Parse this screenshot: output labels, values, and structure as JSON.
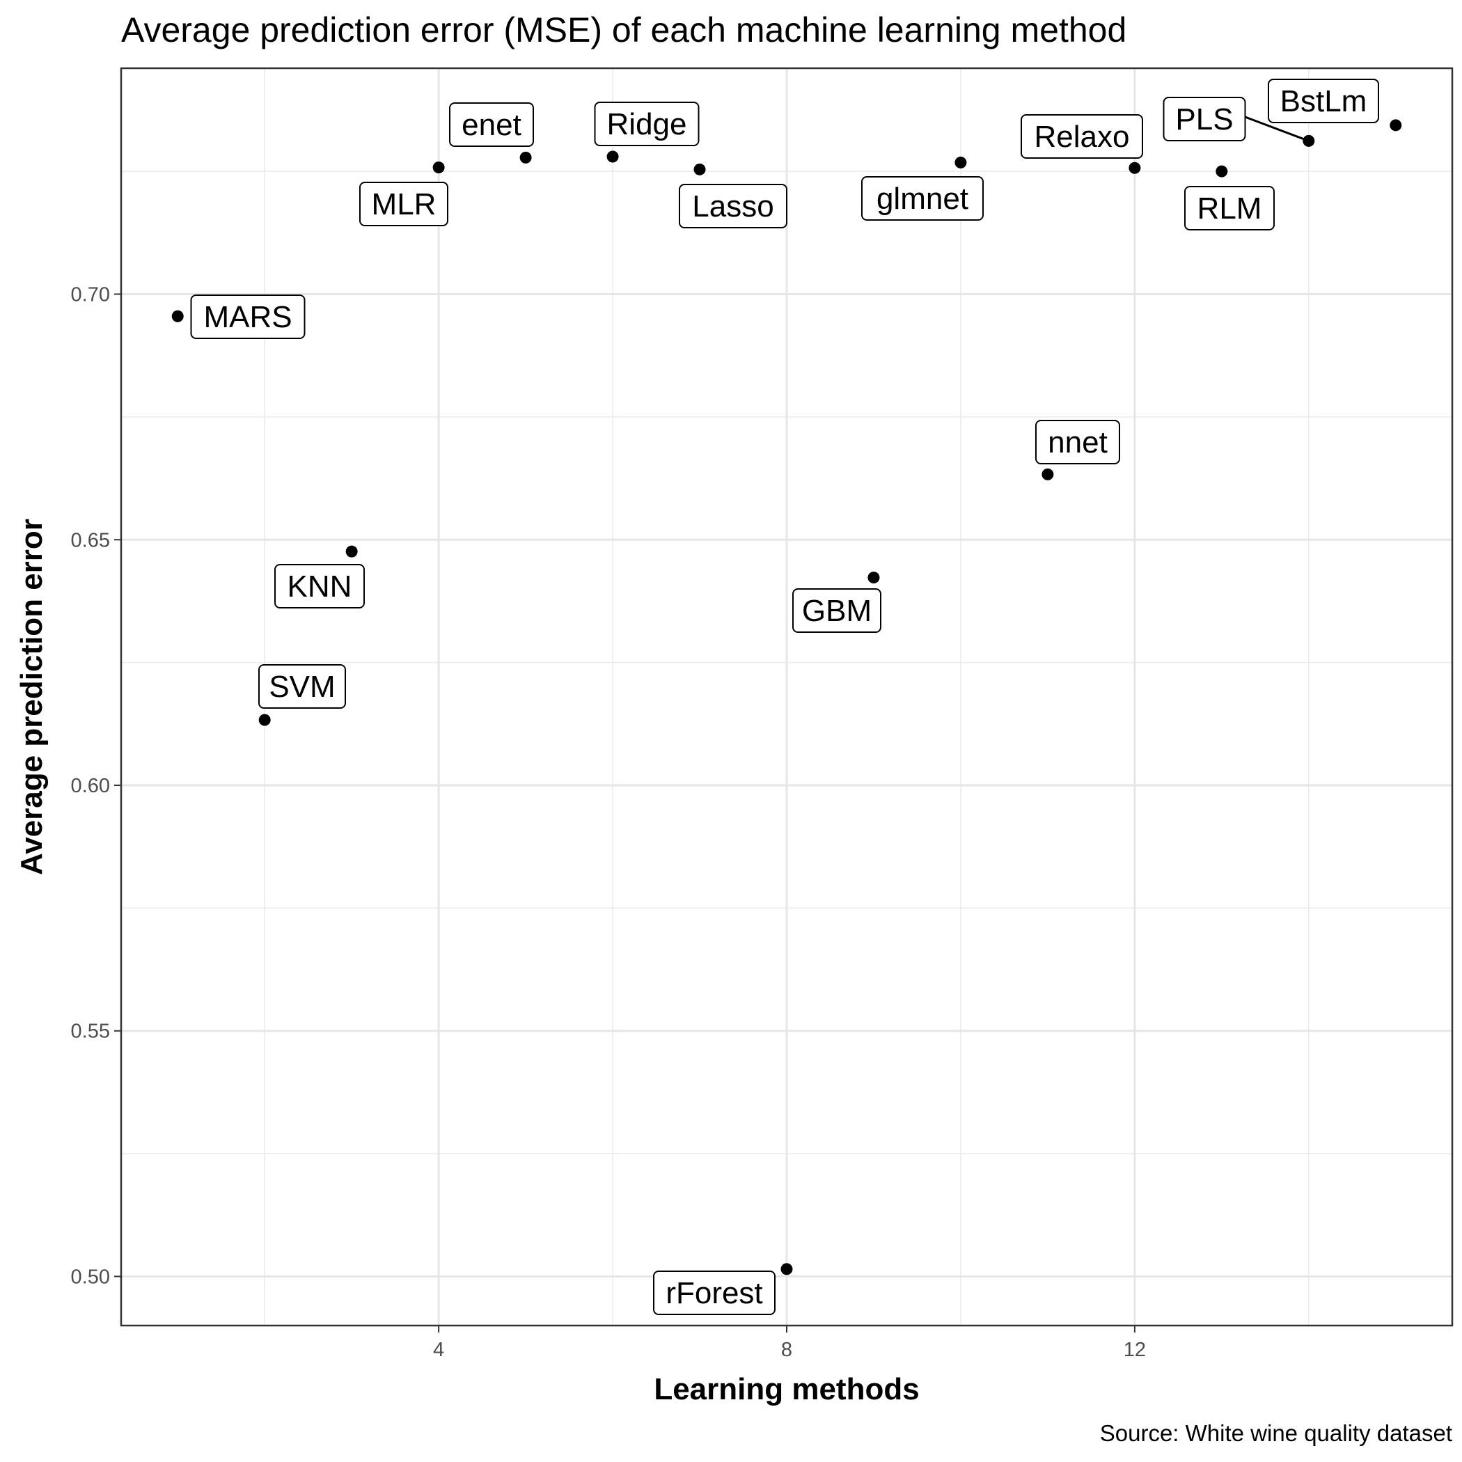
{
  "chart_data": {
    "type": "scatter",
    "title": "Average prediction error (MSE) of each machine learning method",
    "xlabel": "Learning methods",
    "ylabel": "Average prediction error",
    "caption": "Source: White wine quality dataset",
    "xlim": [
      0.35,
      15.65
    ],
    "ylim": [
      0.49,
      0.746
    ],
    "x_major_ticks": [
      4,
      8,
      12
    ],
    "x_minor_ticks": [
      2,
      6,
      10,
      14
    ],
    "y_major_ticks": [
      0.5,
      0.55,
      0.6,
      0.65,
      0.7
    ],
    "y_tick_labels": [
      "0.50",
      "0.55",
      "0.60",
      "0.65",
      "0.70"
    ],
    "y_minor_ticks": [
      0.525,
      0.575,
      0.625,
      0.675,
      0.725
    ],
    "grid": true,
    "points": [
      {
        "x": 1,
        "y": 0.6955,
        "label": "MARS"
      },
      {
        "x": 2,
        "y": 0.6133,
        "label": "SVM"
      },
      {
        "x": 3,
        "y": 0.6476,
        "label": "KNN"
      },
      {
        "x": 4,
        "y": 0.7258,
        "label": "MLR"
      },
      {
        "x": 5,
        "y": 0.7278,
        "label": "enet"
      },
      {
        "x": 6,
        "y": 0.728,
        "label": "Ridge"
      },
      {
        "x": 7,
        "y": 0.7254,
        "label": "Lasso"
      },
      {
        "x": 8,
        "y": 0.5015,
        "label": "rForest"
      },
      {
        "x": 9,
        "y": 0.6423,
        "label": "GBM"
      },
      {
        "x": 10,
        "y": 0.7268,
        "label": "glmnet"
      },
      {
        "x": 11,
        "y": 0.6633,
        "label": "nnet"
      },
      {
        "x": 12,
        "y": 0.7257,
        "label": "Relaxo"
      },
      {
        "x": 13,
        "y": 0.725,
        "label": "RLM"
      },
      {
        "x": 14,
        "y": 0.7312,
        "label": "PLS"
      },
      {
        "x": 15,
        "y": 0.7344,
        "label": "BstLm"
      }
    ]
  }
}
